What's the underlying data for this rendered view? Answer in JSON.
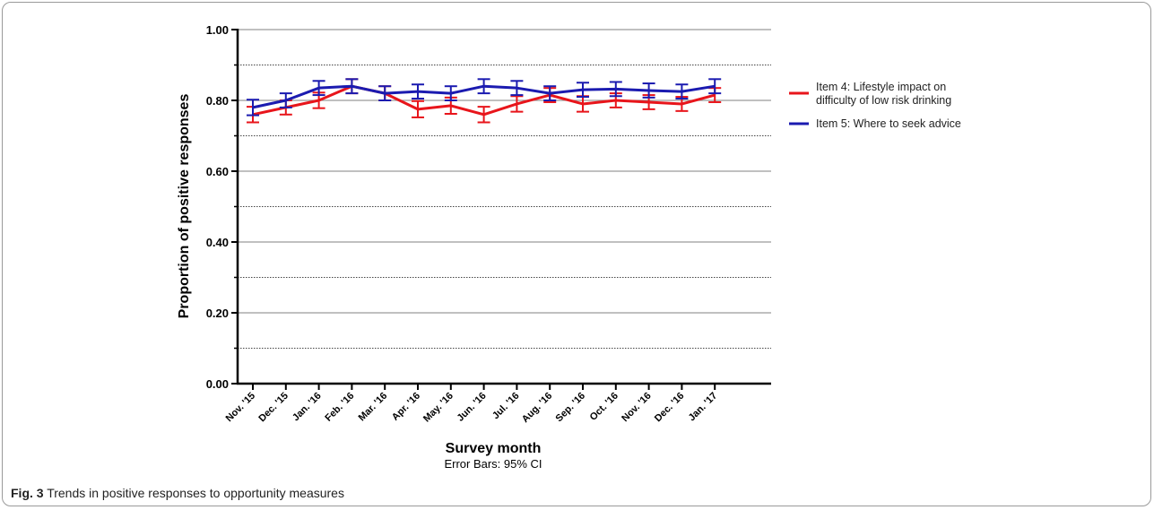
{
  "caption": {
    "label": "Fig. 3",
    "text": "Trends in positive responses to opportunity measures"
  },
  "colors": {
    "item4": "#e8151b",
    "item5": "#1b1bb0",
    "grid_major": "#9a9a9a",
    "grid_minor": "#444444"
  },
  "chart_data": {
    "type": "line",
    "xlabel": "Survey month",
    "subtitle": "Error Bars: 95% CI",
    "ylabel": "Proportion of positive responses",
    "ylim": [
      0,
      1
    ],
    "yticks": [
      "0.00",
      "0.20",
      "0.40",
      "0.60",
      "0.80",
      "1.00"
    ],
    "grid": "major solid at 0.2 steps, dotted at 0.1 intermediates",
    "legend_position": "right",
    "categories": [
      "Nov. '15",
      "Dec. '15",
      "Jan. '16",
      "Feb. '16",
      "Mar. '16",
      "Apr. '16",
      "May. '16",
      "Jun. '16",
      "Jul. '16",
      "Aug. '16",
      "Sep. '16",
      "Oct. '16",
      "Nov. '16",
      "Dec. '16",
      "Jan. '17"
    ],
    "series": [
      {
        "name": "Item 4: Lifestyle impact on difficulty of low risk drinking",
        "color_key": "item4",
        "values": [
          0.76,
          0.78,
          0.8,
          0.84,
          0.82,
          0.775,
          0.785,
          0.76,
          0.79,
          0.815,
          0.79,
          0.8,
          0.795,
          0.79,
          0.815
        ],
        "ci_lower": [
          0.738,
          0.76,
          0.778,
          0.82,
          0.8,
          0.752,
          0.762,
          0.738,
          0.768,
          0.795,
          0.768,
          0.78,
          0.775,
          0.77,
          0.795
        ],
        "ci_upper": [
          0.782,
          0.8,
          0.822,
          0.86,
          0.84,
          0.798,
          0.808,
          0.782,
          0.812,
          0.835,
          0.812,
          0.82,
          0.815,
          0.81,
          0.835
        ]
      },
      {
        "name": "Item 5: Where to seek advice",
        "color_key": "item5",
        "values": [
          0.78,
          0.8,
          0.835,
          0.84,
          0.82,
          0.825,
          0.82,
          0.84,
          0.835,
          0.82,
          0.83,
          0.832,
          0.828,
          0.825,
          0.84
        ],
        "ci_lower": [
          0.758,
          0.78,
          0.815,
          0.82,
          0.8,
          0.805,
          0.8,
          0.82,
          0.815,
          0.8,
          0.81,
          0.812,
          0.808,
          0.805,
          0.82
        ],
        "ci_upper": [
          0.802,
          0.82,
          0.855,
          0.86,
          0.84,
          0.845,
          0.84,
          0.86,
          0.855,
          0.84,
          0.85,
          0.852,
          0.848,
          0.845,
          0.86
        ]
      }
    ]
  }
}
